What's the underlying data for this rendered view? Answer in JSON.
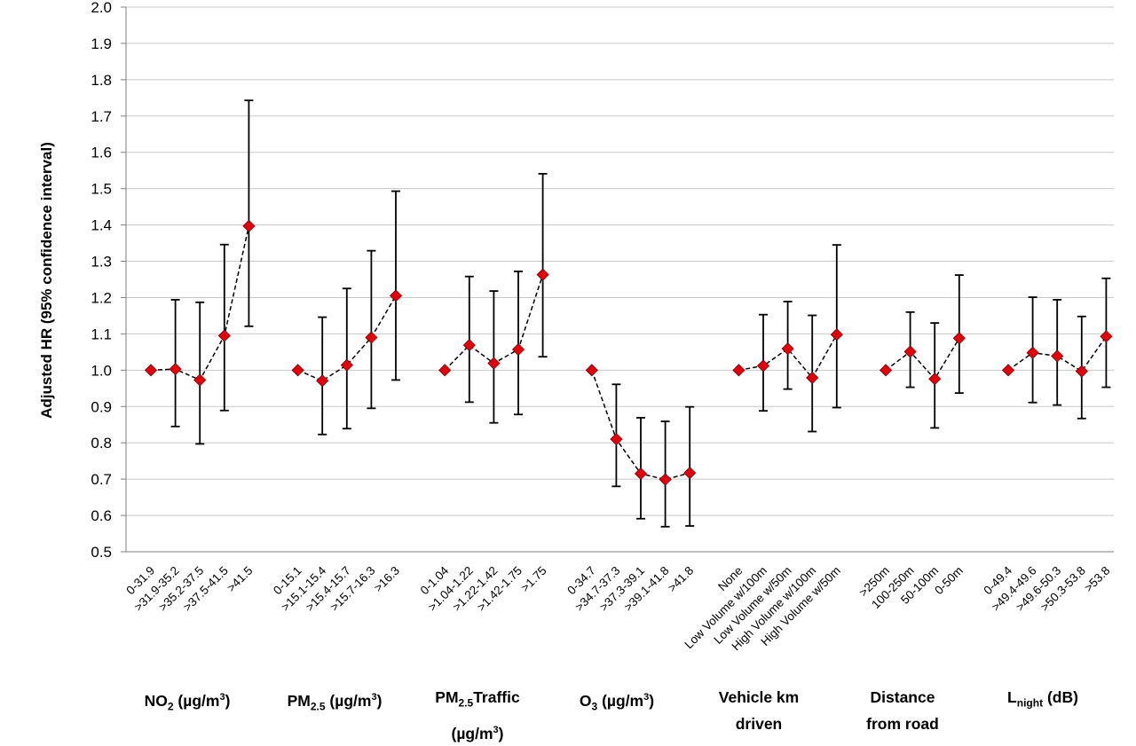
{
  "chart_data": {
    "type": "scatter",
    "ylabel": "Adjusted HR (95% confidence interval)",
    "ylim": [
      0.5,
      2.0
    ],
    "yticks": [
      "0.5",
      "0.6",
      "0.7",
      "0.8",
      "0.9",
      "1.0",
      "1.1",
      "1.2",
      "1.3",
      "1.4",
      "1.5",
      "1.6",
      "1.7",
      "1.8",
      "1.9",
      "2.0"
    ],
    "grid": true,
    "marker_color": "#e0000e",
    "groups": [
      {
        "name": "NO2 (µg/m3)",
        "categories": [
          "0-31.9",
          ">31.9-35.2",
          ">35.2-37.5",
          ">37.5-41.5",
          ">41.5"
        ],
        "hr": [
          1.0,
          1.003,
          0.973,
          1.095,
          1.397
        ],
        "ci_low": [
          1.0,
          0.845,
          0.797,
          0.889,
          1.121
        ],
        "ci_high": [
          1.0,
          1.194,
          1.187,
          1.346,
          1.743
        ]
      },
      {
        "name": "PM2.5 (µg/m3)",
        "categories": [
          "0-15.1",
          ">15.1-15.4",
          ">15.4-15.7",
          ">15.7-16.3",
          ">16.3"
        ],
        "hr": [
          1.0,
          0.971,
          1.014,
          1.09,
          1.205
        ],
        "ci_low": [
          1.0,
          0.823,
          0.839,
          0.895,
          0.973
        ],
        "ci_high": [
          1.0,
          1.146,
          1.225,
          1.329,
          1.493
        ]
      },
      {
        "name": "PM2.5Traffic (µg/m3)",
        "categories": [
          "0-1.04",
          ">1.04-1.22",
          ">1.22-1.42",
          ">1.42-1.75",
          ">1.75"
        ],
        "hr": [
          1.0,
          1.069,
          1.019,
          1.057,
          1.263
        ],
        "ci_low": [
          1.0,
          0.912,
          0.855,
          0.878,
          1.037
        ],
        "ci_high": [
          1.0,
          1.258,
          1.218,
          1.272,
          1.541
        ]
      },
      {
        "name": "O3 (µg/m3)",
        "categories": [
          "0-34.7",
          ">34.7-37.3",
          ">37.3-39.1",
          ">39.1-41.8",
          ">41.8"
        ],
        "hr": [
          1.0,
          0.81,
          0.715,
          0.699,
          0.717
        ],
        "ci_low": [
          1.0,
          0.68,
          0.591,
          0.569,
          0.571
        ],
        "ci_high": [
          1.0,
          0.961,
          0.869,
          0.859,
          0.899
        ]
      },
      {
        "name": "Vehicle km driven",
        "categories": [
          "None",
          "Low Volume w/100m",
          "Low Volume w/50m",
          "High Volume w/100m",
          "High Volume w/50m"
        ],
        "hr": [
          1.0,
          1.012,
          1.059,
          0.979,
          1.098
        ],
        "ci_low": [
          1.0,
          0.888,
          0.948,
          0.831,
          0.897
        ],
        "ci_high": [
          1.0,
          1.153,
          1.189,
          1.151,
          1.345
        ]
      },
      {
        "name": "Distance from road",
        "categories": [
          ">250m",
          "100-250m",
          "50-100m",
          "0-50m"
        ],
        "hr": [
          1.0,
          1.051,
          0.976,
          1.088
        ],
        "ci_low": [
          1.0,
          0.953,
          0.841,
          0.937
        ],
        "ci_high": [
          1.0,
          1.16,
          1.13,
          1.262
        ]
      },
      {
        "name": "Lnight (dB)",
        "categories": [
          "0-49.4",
          ">49.4-49.6",
          ">49.6-50.3",
          ">50.3-53.8",
          ">53.8"
        ],
        "hr": [
          1.0,
          1.048,
          1.039,
          0.997,
          1.093
        ],
        "ci_low": [
          1.0,
          0.911,
          0.904,
          0.867,
          0.953
        ],
        "ci_high": [
          1.0,
          1.201,
          1.194,
          1.148,
          1.253
        ]
      }
    ]
  },
  "group_labels": {
    "no2": {
      "a": "NO",
      "sub": "2",
      "b": " (µg/m",
      "sup": "3",
      "c": ")"
    },
    "pm25": {
      "a": "PM",
      "sub": "2.5",
      "b": " (µg/m",
      "sup": "3",
      "c": ")"
    },
    "pm25traffic": {
      "a": "PM",
      "sub": "2.5",
      "b": "Traffic",
      "line2a": "(µg/m",
      "sup": "3",
      "line2b": ")"
    },
    "o3": {
      "a": "O",
      "sub": "3",
      "b": " (µg/m",
      "sup": "3",
      "c": ")"
    },
    "vkm": {
      "line1": "Vehicle km",
      "line2": "driven"
    },
    "dist": {
      "line1": "Distance",
      "line2": "from road"
    },
    "lnight": {
      "a": "L",
      "sub": "night",
      "b": " (dB)"
    }
  }
}
